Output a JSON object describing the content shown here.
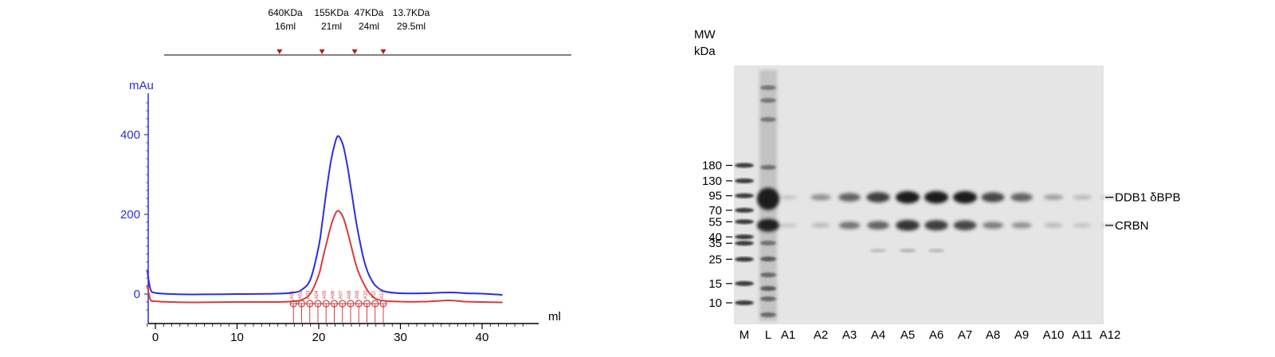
{
  "chart_data": [
    {
      "type": "line",
      "title": "",
      "xlabel": "ml",
      "ylabel": "mAu",
      "xlim": [
        -1,
        45
      ],
      "ylim": [
        -55,
        490
      ],
      "xticks": [
        0,
        10,
        20,
        30,
        40
      ],
      "yticks": [
        0,
        200,
        400
      ],
      "x_tick_labels": [
        "0",
        "10",
        "20",
        "30",
        "40"
      ],
      "y_tick_labels": [
        "0",
        "200",
        "400"
      ],
      "grid": false,
      "legend": null,
      "series": [
        {
          "color": "#2d2de0",
          "x": [
            -1,
            -0.6,
            0,
            2,
            5,
            10,
            15,
            17,
            18,
            19,
            20,
            20.5,
            21,
            21.5,
            22,
            22.3,
            22.6,
            23,
            23.5,
            24,
            24.5,
            25,
            25.5,
            26,
            26.5,
            27,
            28,
            30,
            33,
            36,
            38,
            40,
            42.5
          ],
          "y": [
            60,
            12,
            3,
            0,
            -1,
            0,
            1,
            4,
            12,
            38,
            120,
            190,
            268,
            335,
            380,
            396,
            392,
            372,
            322,
            258,
            192,
            135,
            88,
            55,
            34,
            20,
            7,
            2,
            2,
            4,
            2,
            1,
            -2
          ]
        },
        {
          "color": "#d83a3a",
          "x": [
            -1,
            -0.6,
            0,
            2,
            5,
            10,
            15,
            17,
            18,
            19,
            20,
            20.5,
            21,
            21.5,
            22,
            22.3,
            22.6,
            23,
            23.5,
            24,
            24.5,
            25,
            25.5,
            26,
            26.5,
            27,
            28,
            30,
            33,
            36,
            38,
            40,
            42.5
          ],
          "y": [
            22,
            -14,
            -18,
            -20,
            -21,
            -20,
            -20,
            -18,
            -14,
            2,
            48,
            90,
            132,
            172,
            200,
            209,
            206,
            192,
            158,
            118,
            78,
            48,
            26,
            8,
            -4,
            -12,
            -17,
            -19,
            -19,
            -16,
            -19,
            -20,
            -21
          ]
        }
      ],
      "fraction_ticks": {
        "color": "#d04040",
        "x": [
          16.9,
          17.9,
          18.9,
          19.9,
          20.9,
          21.9,
          22.9,
          23.9,
          24.9,
          25.9,
          26.9,
          27.9
        ],
        "labels": [
          "A01",
          "A02",
          "A03",
          "A04",
          "A05",
          "A06",
          "A07",
          "A08",
          "A09",
          "A10",
          "A11",
          "A12"
        ]
      },
      "calibration_markers": [
        {
          "mass": "640KDa",
          "volume": "16ml",
          "x": 15.2
        },
        {
          "mass": "155KDa",
          "volume": "21ml",
          "x": 20.4
        },
        {
          "mass": "47KDa",
          "volume": "24ml",
          "x": 24.4
        },
        {
          "mass": "13.7KDa",
          "volume": "29.5ml",
          "x": 27.9
        }
      ],
      "colors": {
        "axis": "#2d2de0",
        "trace1": "#2d2de0",
        "trace2": "#d83a3a",
        "marker": "#c0141e"
      }
    },
    {
      "type": "gel",
      "mw_label_line1": "MW",
      "mw_label_line2": "kDa",
      "marker_ladder": [
        {
          "label": "180",
          "kda": 180
        },
        {
          "label": "130",
          "kda": 130
        },
        {
          "label": "95",
          "kda": 95
        },
        {
          "label": "70",
          "kda": 70
        },
        {
          "label": "55",
          "kda": 55
        },
        {
          "label": "40",
          "kda": 40
        },
        {
          "label": "35",
          "kda": 35
        },
        {
          "label": "25",
          "kda": 25
        },
        {
          "label": "15",
          "kda": 15
        },
        {
          "label": "10",
          "kda": 10
        }
      ],
      "lanes": [
        "M",
        "L",
        "A1",
        "A2",
        "A3",
        "A4",
        "A5",
        "A6",
        "A7",
        "A8",
        "A9",
        "A10",
        "A11",
        "A12"
      ],
      "band_annotations": [
        {
          "label": "DDB1 δBPB",
          "kda": 92
        },
        {
          "label": "CRBN",
          "kda": 51
        }
      ],
      "band_intensity": {
        "DDB1 δBPB": [
          0,
          1.0,
          0.04,
          0.3,
          0.55,
          0.75,
          0.95,
          0.95,
          0.95,
          0.7,
          0.55,
          0.22,
          0.1,
          0.06
        ],
        "CRBN": [
          0,
          0.9,
          0.03,
          0.1,
          0.45,
          0.55,
          0.8,
          0.75,
          0.7,
          0.4,
          0.3,
          0.1,
          0.05,
          0.02
        ]
      }
    }
  ]
}
